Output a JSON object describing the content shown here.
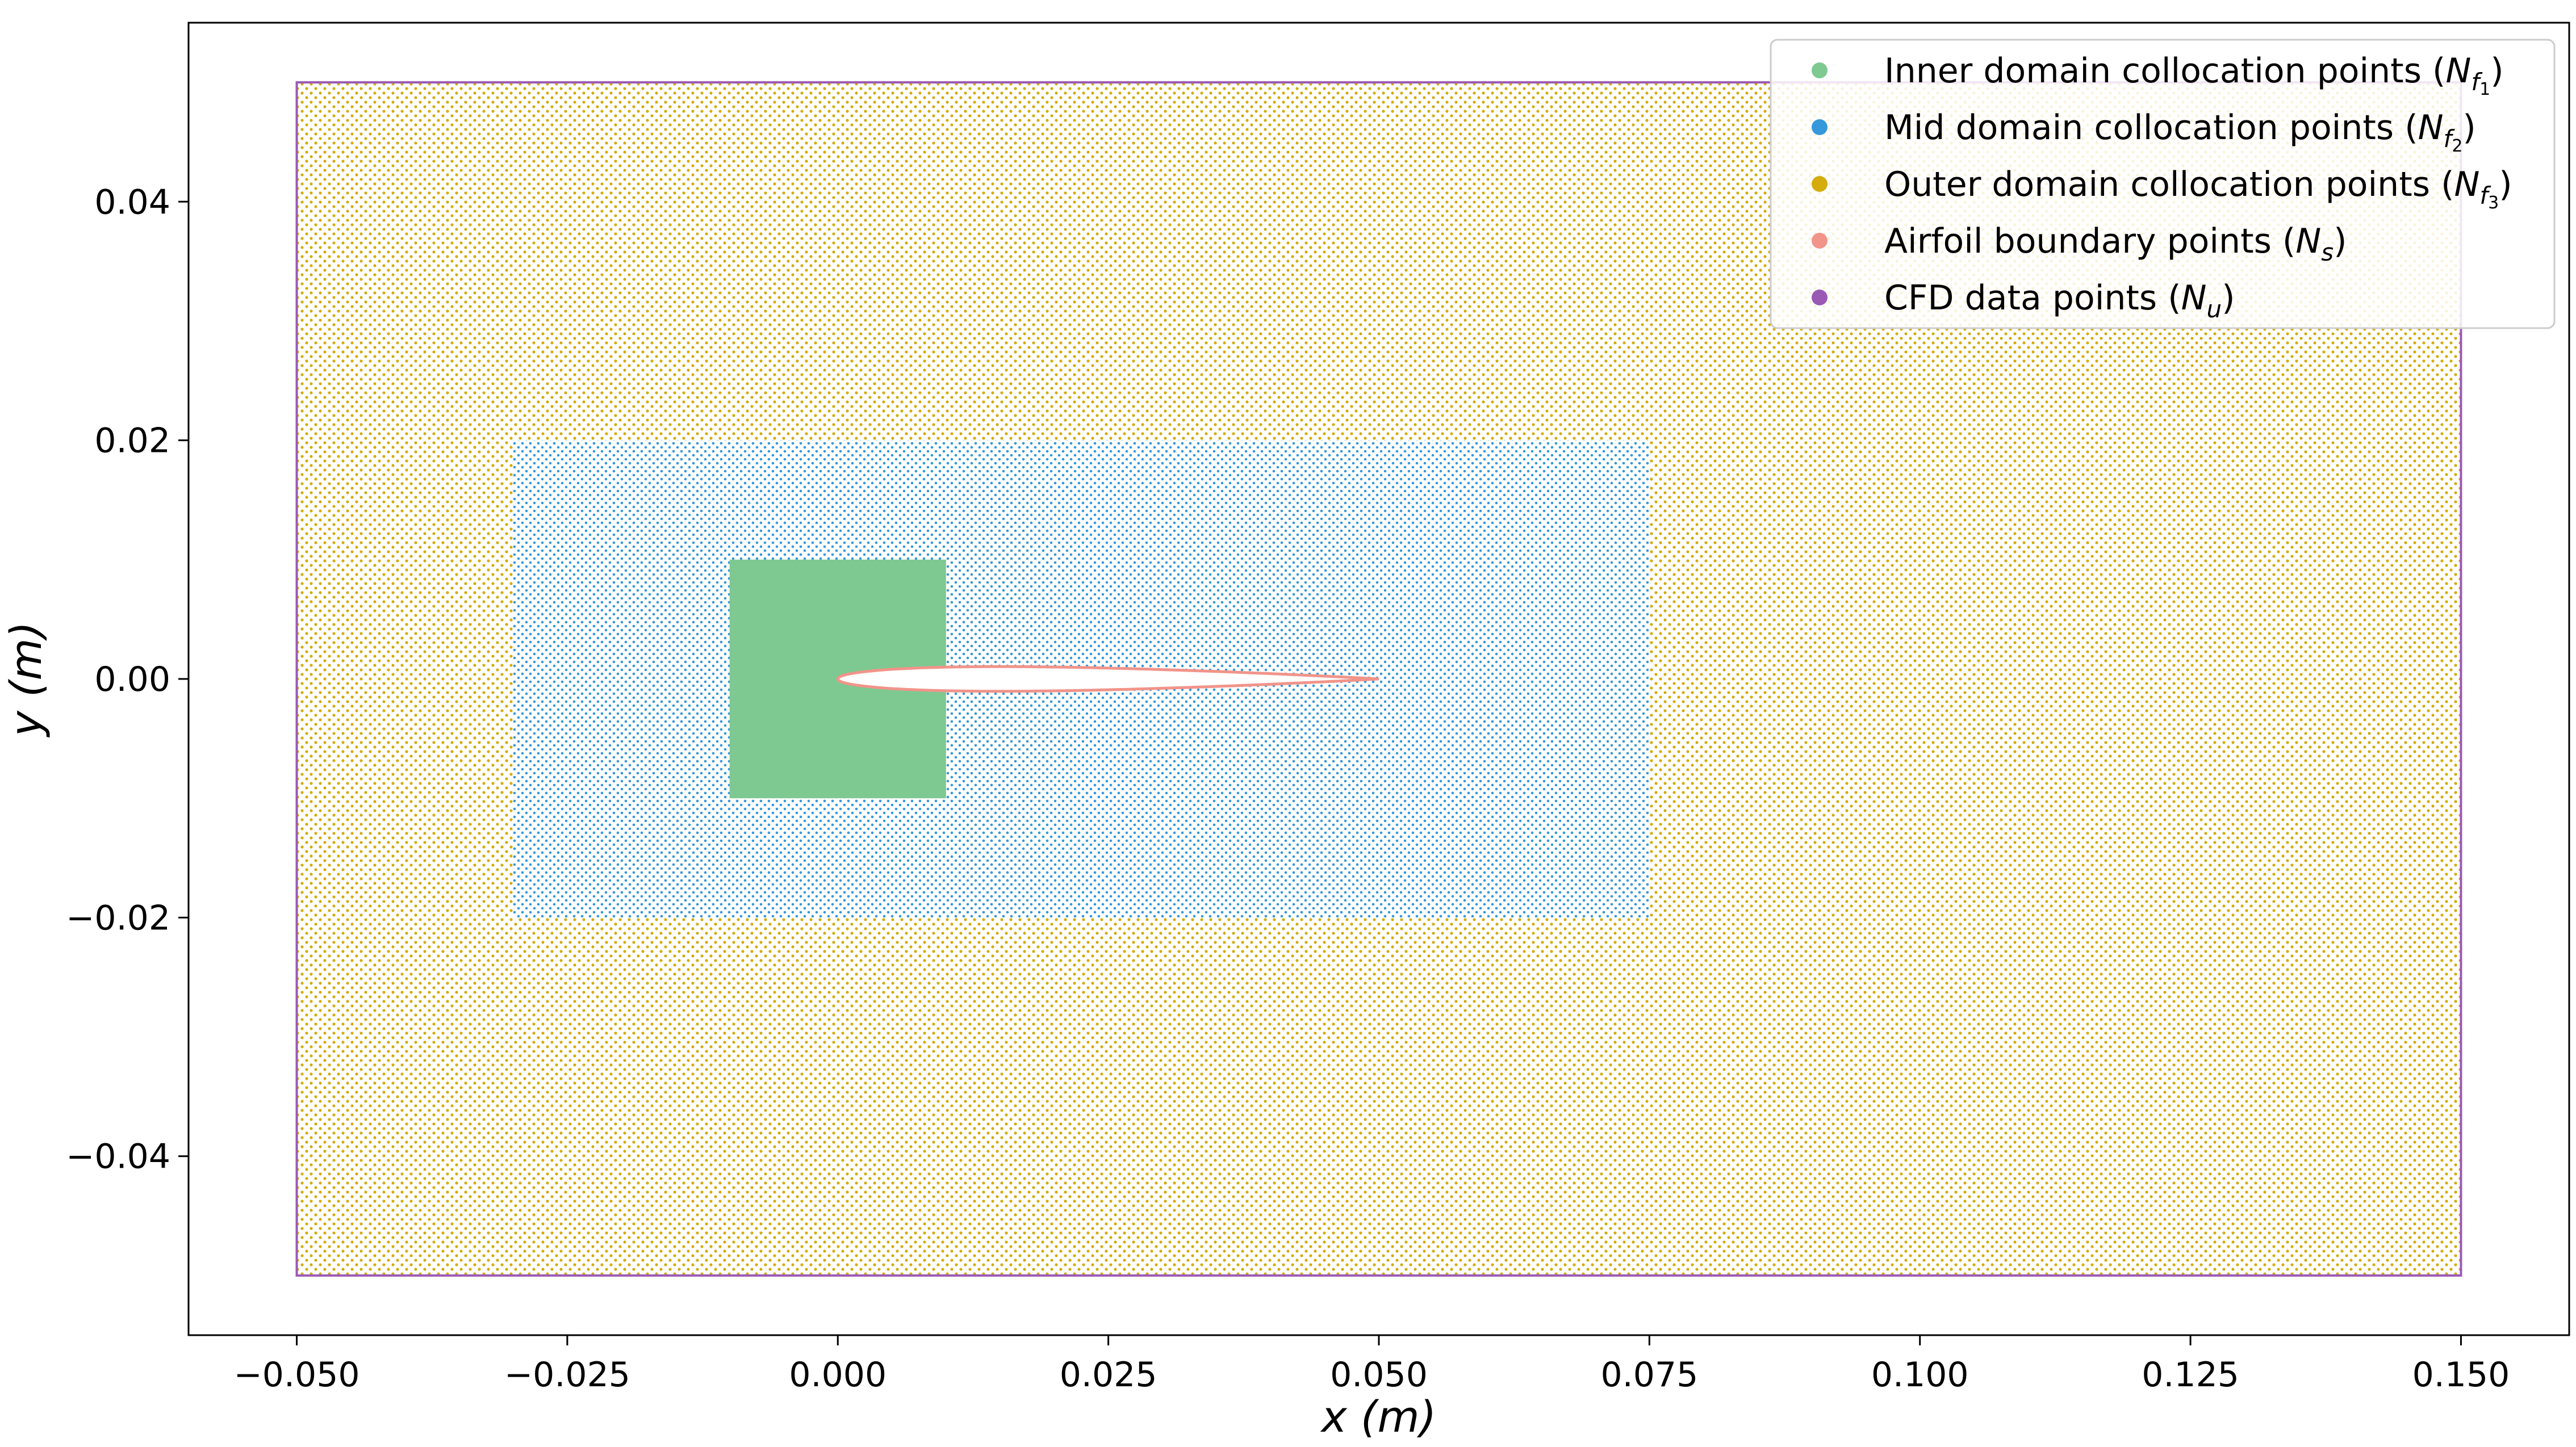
{
  "chart_data": {
    "type": "scatter",
    "title": "",
    "xlabel": "x (m)",
    "ylabel": "y (m)",
    "xlim": [
      -0.06,
      0.16
    ],
    "ylim": [
      -0.055,
      0.055
    ],
    "grid": false,
    "legend_placement": "top-right",
    "x_ticks": [
      "−0.050",
      "−0.025",
      "0.000",
      "0.025",
      "0.050",
      "0.075",
      "0.100",
      "0.125",
      "0.150"
    ],
    "x_tick_values": [
      -0.05,
      -0.025,
      0.0,
      0.025,
      0.05,
      0.075,
      0.1,
      0.125,
      0.15
    ],
    "y_ticks": [
      "−0.04",
      "−0.02",
      "0.00",
      "0.02",
      "0.04"
    ],
    "y_tick_values": [
      -0.04,
      -0.02,
      0.0,
      0.02,
      0.04
    ],
    "series": [
      {
        "name": "Inner domain collocation points (N_{f_1})",
        "legend_main": "Inner domain collocation points (",
        "legend_sym": "N",
        "legend_sub": "f",
        "legend_subsub": "1",
        "legend_close": ")",
        "color": "#7dc991",
        "region": {
          "x": [
            -0.01,
            0.01
          ],
          "y": [
            -0.01,
            0.01
          ]
        }
      },
      {
        "name": "Mid domain collocation points (N_{f_2})",
        "legend_main": "Mid domain collocation points (",
        "legend_sym": "N",
        "legend_sub": "f",
        "legend_subsub": "2",
        "legend_close": ")",
        "color": "#3498db",
        "region": {
          "x": [
            -0.03,
            0.075
          ],
          "y": [
            -0.02,
            0.02
          ]
        }
      },
      {
        "name": "Outer domain collocation points (N_{f_3})",
        "legend_main": "Outer domain collocation points (",
        "legend_sym": "N",
        "legend_sub": "f",
        "legend_subsub": "3",
        "legend_close": ")",
        "color": "#d4ac0d",
        "region": {
          "x": [
            -0.05,
            0.15
          ],
          "y": [
            -0.05,
            0.05
          ]
        }
      },
      {
        "name": "Airfoil boundary points (N_s)",
        "legend_main": "Airfoil boundary points (",
        "legend_sym": "N",
        "legend_sub": "s",
        "legend_subsub": "",
        "legend_close": ")",
        "color": "#f1948a",
        "airfoil": {
          "chord": [
            0.0,
            0.05
          ],
          "max_thickness": 0.0062
        }
      },
      {
        "name": "CFD data points (N_u)",
        "legend_main": "CFD data points (",
        "legend_sym": "N",
        "legend_sub": "u",
        "legend_subsub": "",
        "legend_close": ")",
        "color": "#9b59b6",
        "boundary": {
          "x": [
            -0.05,
            0.15
          ],
          "y": [
            -0.05,
            0.05
          ]
        }
      }
    ]
  }
}
